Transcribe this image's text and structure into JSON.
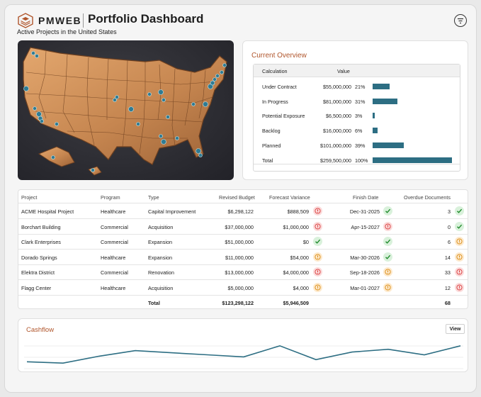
{
  "header": {
    "brand": "PMWEB",
    "title": "Portfolio Dashboard",
    "subtitle": "Active Projects in the United States"
  },
  "colors": {
    "accent": "#b0552b",
    "bar": "#2d6e83",
    "map_fill": "#c98a52",
    "marker": "#2f7b93"
  },
  "overview": {
    "title": "Current Overview",
    "columns": [
      "Calculation",
      "Value"
    ],
    "rows": [
      {
        "label": "Under Contract",
        "value": "$55,000,000",
        "pct": "21%",
        "share": 21
      },
      {
        "label": "In Progress",
        "value": "$81,000,000",
        "pct": "31%",
        "share": 31
      },
      {
        "label": "Potential Exposure",
        "value": "$6,500,000",
        "pct": "3%",
        "share": 3
      },
      {
        "label": "Backlog",
        "value": "$16,000,000",
        "pct": "6%",
        "share": 6
      },
      {
        "label": "Planned",
        "value": "$101,000,000",
        "pct": "39%",
        "share": 39
      },
      {
        "label": "Total",
        "value": "$259,500,000",
        "pct": "100%",
        "share": 100
      }
    ]
  },
  "projects": {
    "columns": [
      "Project",
      "Program",
      "Type",
      "Revised Budget",
      "Forecast Variance",
      "Finish Date",
      "Overdue Documents"
    ],
    "rows": [
      {
        "project": "ACME Hospital Project",
        "program": "Healthcare",
        "type": "Capital Improvement",
        "budget": "$6,298,122",
        "variance": "$888,509",
        "variance_status": "err",
        "finish": "Dec-31-2025",
        "finish_status": "ok",
        "overdue": "3",
        "overdue_status": "ok"
      },
      {
        "project": "Borchart Building",
        "program": "Commercial",
        "type": "Acquisition",
        "budget": "$37,000,000",
        "variance": "$1,000,000",
        "variance_status": "err",
        "finish": "Apr-15-2027",
        "finish_status": "err",
        "overdue": "0",
        "overdue_status": "ok"
      },
      {
        "project": "Clark Enterprises",
        "program": "Commercial",
        "type": "Expansion",
        "budget": "$51,000,000",
        "variance": "$0",
        "variance_status": "ok",
        "finish": "",
        "finish_status": "ok",
        "overdue": "6",
        "overdue_status": "warn"
      },
      {
        "project": "Dorado Springs",
        "program": "Healthcare",
        "type": "Expansion",
        "budget": "$11,000,000",
        "variance": "$54,000",
        "variance_status": "warn",
        "finish": "Mar-30-2026",
        "finish_status": "ok",
        "overdue": "14",
        "overdue_status": "warn"
      },
      {
        "project": "Elektra District",
        "program": "Commercial",
        "type": "Renovation",
        "budget": "$13,000,000",
        "variance": "$4,000,000",
        "variance_status": "err",
        "finish": "Sep-18-2026",
        "finish_status": "warn",
        "overdue": "33",
        "overdue_status": "err"
      },
      {
        "project": "Flagg Center",
        "program": "Healthcare",
        "type": "Acquisition",
        "budget": "$5,000,000",
        "variance": "$4,000",
        "variance_status": "warn",
        "finish": "Mar-01-2027",
        "finish_status": "warn",
        "overdue": "12",
        "overdue_status": "err"
      }
    ],
    "total": {
      "label": "Total",
      "budget": "$123,298,122",
      "variance": "$5,946,509",
      "overdue": "68"
    }
  },
  "cashflow": {
    "title": "Cashflow",
    "view_label": "View",
    "series": [
      52,
      50,
      60,
      68,
      65,
      62,
      59,
      75,
      55,
      66,
      70,
      62,
      75
    ]
  },
  "icons": {
    "filter": "filter-icon",
    "ok": "check-icon",
    "warn": "warning-icon",
    "err": "alert-icon"
  }
}
